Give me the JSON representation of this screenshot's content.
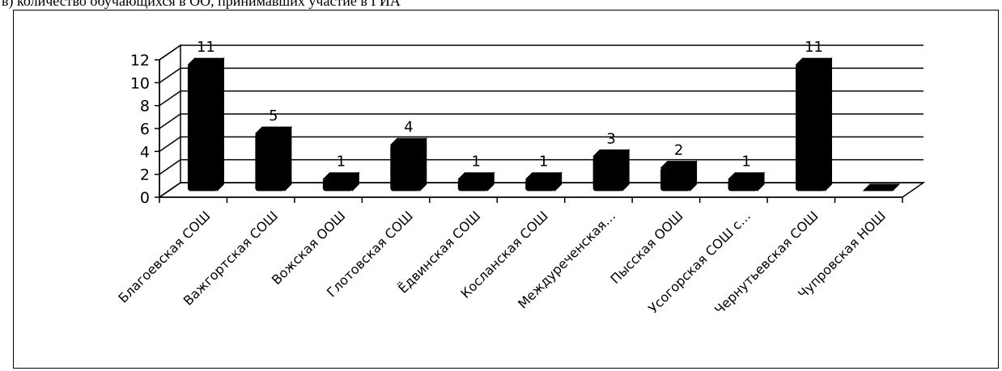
{
  "page_header_fragment": "в) количество обучающихся в ОО, принимавших участие в ГИА",
  "chart_data": {
    "type": "bar",
    "title": "",
    "xlabel": "",
    "ylabel": "",
    "ylim": [
      0,
      12
    ],
    "yticks": [
      0,
      2,
      4,
      6,
      8,
      10,
      12
    ],
    "grid": true,
    "legend": "none",
    "style": "3d",
    "bar_color": "#000000",
    "categories": [
      "Благоевская СОШ",
      "Важгортская СОШ",
      "Вожская ООШ",
      "Глотовская СОШ",
      "Ёдвинская СОШ",
      "Косланская СОШ",
      "Междуреченская…",
      "Пысская ООШ",
      "Усогорская СОШ с…",
      "Чернутьевская СОШ",
      "Чупровская НОШ"
    ],
    "values": [
      11,
      5,
      1,
      4,
      1,
      1,
      3,
      2,
      1,
      11,
      0
    ],
    "data_labels": [
      "11",
      "5",
      "1",
      "4",
      "1",
      "1",
      "3",
      "2",
      "1",
      "11",
      ""
    ]
  }
}
